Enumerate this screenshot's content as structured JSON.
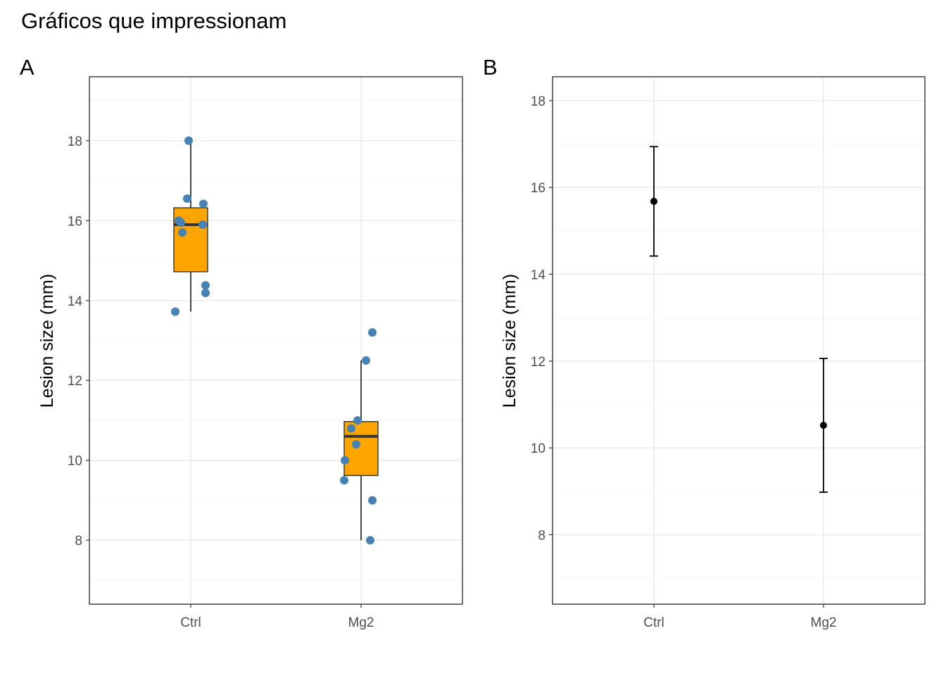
{
  "title": "Gráficos que impressionam",
  "chart_data": [
    {
      "tag": "A",
      "type": "box",
      "categories": [
        "Ctrl",
        "Mg2"
      ],
      "ylabel": "Lesion size (mm)",
      "xlabel": "",
      "ylim": [
        6.4,
        19.6
      ],
      "yticks": [
        "8",
        "10",
        "12",
        "14",
        "16",
        "18"
      ],
      "grid": true,
      "box_fill": "#FFA500",
      "point_color": "#4682B4",
      "boxes": [
        {
          "category": "Ctrl",
          "whisker_low": 13.72,
          "q1": 14.72,
          "median": 15.9,
          "q3": 16.32,
          "whisker_high": 18.0
        },
        {
          "category": "Mg2",
          "whisker_low": 8.0,
          "q1": 9.62,
          "median": 10.6,
          "q3": 10.97,
          "whisker_high": 12.5
        }
      ],
      "series": [
        {
          "category": "Ctrl",
          "values": [
            18.0,
            16.55,
            16.42,
            16.0,
            15.95,
            15.9,
            15.7,
            14.38,
            14.19,
            13.72
          ]
        },
        {
          "category": "Mg2",
          "values": [
            13.2,
            12.5,
            11.0,
            10.8,
            10.4,
            10.0,
            9.5,
            9.0,
            8.0
          ]
        }
      ]
    },
    {
      "tag": "B",
      "type": "errorbar",
      "categories": [
        "Ctrl",
        "Mg2"
      ],
      "ylabel": "Lesion size (mm)",
      "xlabel": "",
      "ylim": [
        6.4,
        18.55
      ],
      "yticks": [
        "8",
        "10",
        "12",
        "14",
        "16",
        "18"
      ],
      "grid": true,
      "point_color": "#000000",
      "points": [
        {
          "category": "Ctrl",
          "mean": 15.68,
          "lower": 14.42,
          "upper": 16.94
        },
        {
          "category": "Mg2",
          "mean": 10.52,
          "lower": 8.98,
          "upper": 12.06
        }
      ]
    }
  ]
}
